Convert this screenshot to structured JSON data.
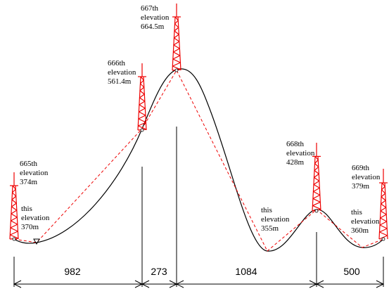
{
  "towers": [
    {
      "lines": [
        "665th",
        "elevation",
        "374m"
      ]
    },
    {
      "lines": [
        "666th",
        "elevation",
        "561.4m"
      ]
    },
    {
      "lines": [
        "667th",
        "elevation",
        "664.5m"
      ]
    },
    {
      "lines": [
        "668th",
        "elevation",
        "428m"
      ]
    },
    {
      "lines": [
        "669th",
        "elevation",
        "379m"
      ]
    }
  ],
  "low_points": [
    {
      "lines": [
        "this",
        "elevation",
        "370m"
      ]
    },
    {
      "lines": [
        "this",
        "elevation",
        "355m"
      ]
    },
    {
      "lines": [
        "this",
        "elevation",
        "360m"
      ]
    }
  ],
  "spans": [
    982,
    273,
    1084,
    500
  ]
}
